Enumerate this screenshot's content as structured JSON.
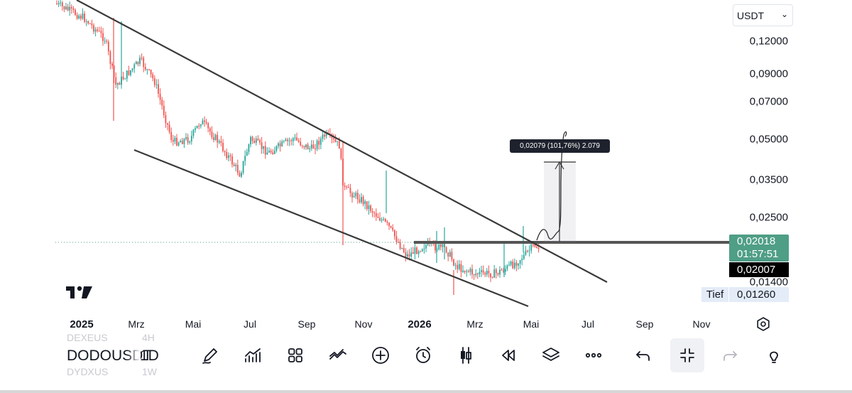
{
  "currency": {
    "value": "USDT"
  },
  "price_axis": [
    "0,12000",
    "0,09000",
    "0,07000",
    "0,05000",
    "0,03500",
    "0,02500",
    "0,01400"
  ],
  "last_price": {
    "value": "0,02018",
    "countdown": "01:57:51"
  },
  "crosshair_price": "0,02007",
  "low": {
    "label": "Tief",
    "value": "0,01260"
  },
  "measure_tooltip": "0,02079 (101,76%) 2.079",
  "time_axis": [
    {
      "label": "2025",
      "bold": true
    },
    {
      "label": "Mrz",
      "bold": false
    },
    {
      "label": "Mai",
      "bold": false
    },
    {
      "label": "Jul",
      "bold": false
    },
    {
      "label": "Sep",
      "bold": false
    },
    {
      "label": "Nov",
      "bold": false
    },
    {
      "label": "2026",
      "bold": true
    },
    {
      "label": "Mrz",
      "bold": false
    },
    {
      "label": "Mai",
      "bold": false
    },
    {
      "label": "Jul",
      "bold": false
    },
    {
      "label": "Sep",
      "bold": false
    },
    {
      "label": "Nov",
      "bold": false
    }
  ],
  "symbol": {
    "name": "DODOUSDT",
    "interval": "1D",
    "prev_name": "DEXEUS",
    "prev_interval": "4H",
    "next_name": "DYDXUS",
    "next_interval": "1W"
  },
  "toolbar": [
    {
      "name": "drawing-tools",
      "icon": "pen-icon"
    },
    {
      "name": "indicators",
      "icon": "indicators-icon"
    },
    {
      "name": "layouts",
      "icon": "grid-icon"
    },
    {
      "name": "compare",
      "icon": "compare-icon"
    },
    {
      "name": "add",
      "icon": "plus-circle-icon"
    },
    {
      "name": "alert",
      "icon": "alarm-clock-icon"
    },
    {
      "name": "chart-type",
      "icon": "candles-icon"
    },
    {
      "name": "replay",
      "icon": "rewind-icon"
    },
    {
      "name": "layers",
      "icon": "layers-icon"
    },
    {
      "name": "more",
      "icon": "more-icon"
    },
    {
      "name": "undo",
      "icon": "undo-icon"
    },
    {
      "name": "collapse",
      "icon": "collapse-icon"
    },
    {
      "name": "redo",
      "icon": "redo-icon"
    },
    {
      "name": "ideas",
      "icon": "lightbulb-icon"
    }
  ],
  "colors": {
    "up": "#26a69a",
    "down": "#ef5350",
    "trendline": "#3a3a3a",
    "price_tag": "#4f9e86"
  }
}
